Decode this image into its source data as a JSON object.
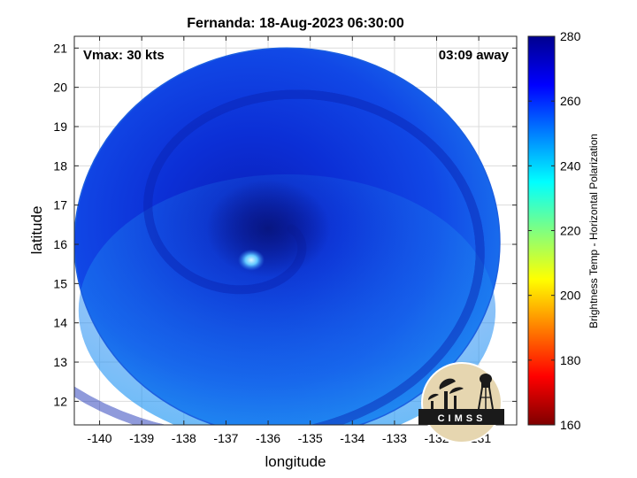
{
  "chart_data": {
    "type": "heatmap",
    "title": "Fernanda: 18-Aug-2023 06:30:00",
    "xlabel": "longitude",
    "ylabel": "latitude",
    "xlim": [
      -140.6,
      -130.1
    ],
    "ylim": [
      11.4,
      21.3
    ],
    "xticks": [
      -140,
      -139,
      -138,
      -137,
      -136,
      -135,
      -134,
      -133,
      -132,
      -131
    ],
    "yticks": [
      12,
      13,
      14,
      15,
      16,
      17,
      18,
      19,
      20,
      21
    ],
    "grid": true,
    "annotations": {
      "vmax": "Vmax: 30 kts",
      "time_away": "03:09 away"
    },
    "swath": {
      "center": [
        -135.55,
        16.05
      ],
      "radius_lon": 5.05,
      "radius_lat": 4.95
    },
    "storm_center": [
      -136.0,
      16.4
    ],
    "warm_spot": [
      -136.4,
      15.6
    ],
    "colorbar": {
      "label": "Brightness Temp - Horizontal Polarization",
      "range": [
        160,
        280
      ],
      "ticks": [
        160,
        180,
        200,
        220,
        240,
        260,
        280
      ],
      "colors": [
        "#7f0000",
        "#ff0000",
        "#ff8000",
        "#ffff00",
        "#80ff80",
        "#00ffff",
        "#0080ff",
        "#0000ff",
        "#00008f"
      ]
    },
    "logo": {
      "text": "CIMSS"
    }
  }
}
